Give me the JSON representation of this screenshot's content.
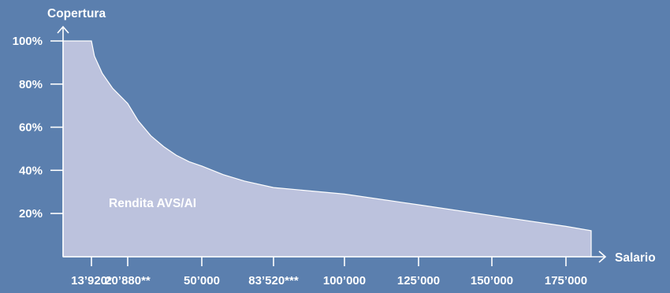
{
  "colors": {
    "background": "#5b7fae",
    "area_fill": "#bcc2dd",
    "axis": "#ffffff",
    "text": "#ffffff"
  },
  "chart_data": {
    "type": "area",
    "ylabel": "Copertura",
    "xlabel": "Salario",
    "series_label": "Rendita AVS/AI",
    "y_ticks": [
      {
        "value": 20,
        "label": "20%"
      },
      {
        "value": 40,
        "label": "40%"
      },
      {
        "value": 60,
        "label": "60%"
      },
      {
        "value": 80,
        "label": "80%"
      },
      {
        "value": 100,
        "label": "100%"
      }
    ],
    "x_ticks": [
      {
        "value": 13920,
        "label": "13’920*"
      },
      {
        "value": 20880,
        "label": "20’880**"
      },
      {
        "value": 50000,
        "label": "50’000"
      },
      {
        "value": 83520,
        "label": "83’520***"
      },
      {
        "value": 100000,
        "label": "100’000"
      },
      {
        "value": 125000,
        "label": "125’000"
      },
      {
        "value": 150000,
        "label": "150’000"
      },
      {
        "value": 175000,
        "label": "175’000"
      }
    ],
    "points": [
      {
        "x": 0,
        "y": 100
      },
      {
        "x": 13920,
        "y": 100
      },
      {
        "x": 14500,
        "y": 93
      },
      {
        "x": 16000,
        "y": 85
      },
      {
        "x": 18000,
        "y": 78
      },
      {
        "x": 20880,
        "y": 71
      },
      {
        "x": 25000,
        "y": 63
      },
      {
        "x": 30000,
        "y": 56
      },
      {
        "x": 35000,
        "y": 51
      },
      {
        "x": 40000,
        "y": 47
      },
      {
        "x": 45000,
        "y": 44
      },
      {
        "x": 50000,
        "y": 42
      },
      {
        "x": 60000,
        "y": 38
      },
      {
        "x": 70000,
        "y": 35
      },
      {
        "x": 83520,
        "y": 32
      },
      {
        "x": 100000,
        "y": 29
      },
      {
        "x": 125000,
        "y": 24
      },
      {
        "x": 150000,
        "y": 19
      },
      {
        "x": 175000,
        "y": 14
      },
      {
        "x": 184000,
        "y": 12
      }
    ]
  }
}
